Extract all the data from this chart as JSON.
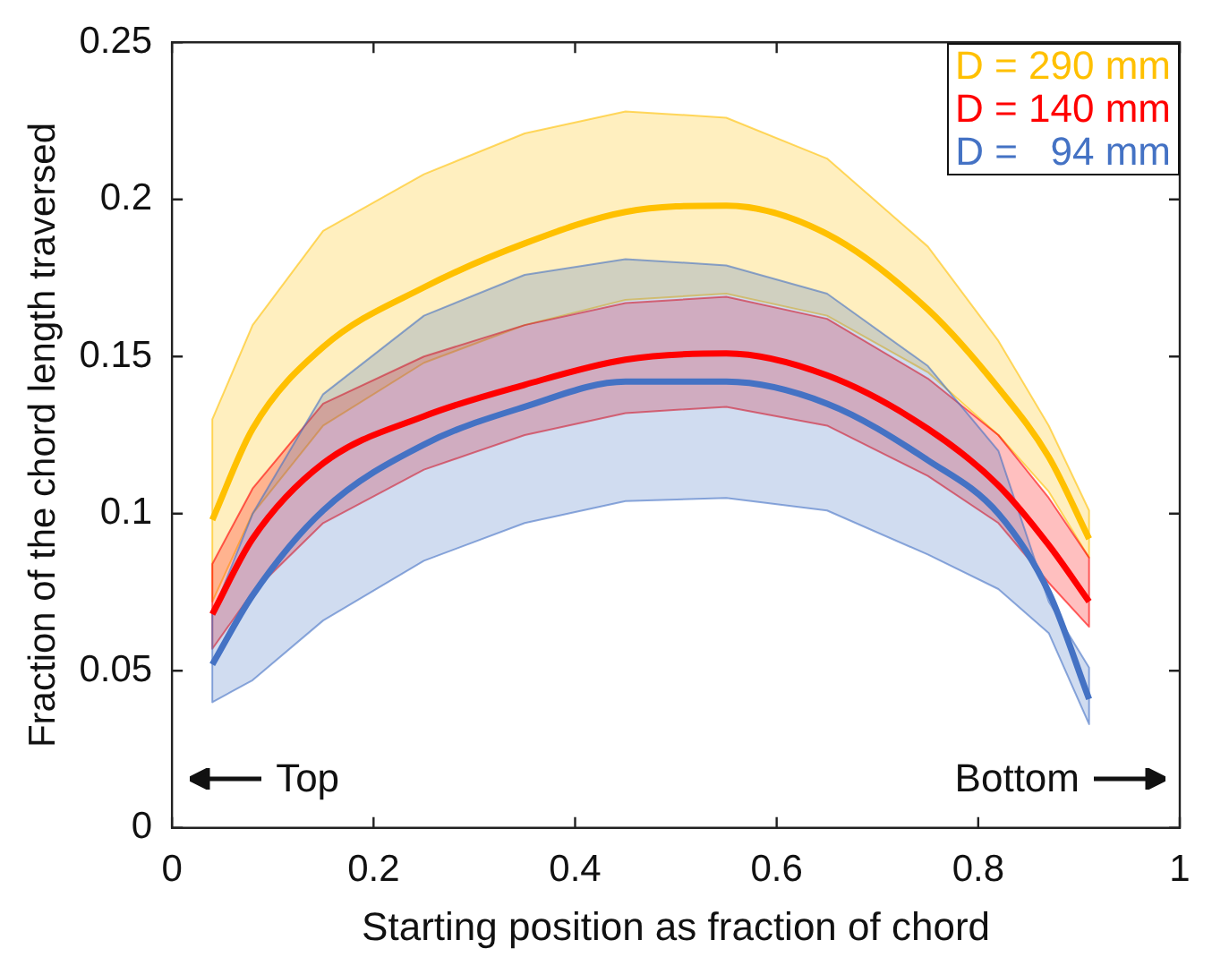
{
  "chart_data": {
    "type": "line",
    "xlabel": "Starting position as fraction of chord",
    "ylabel": "Fraction of the chord length traversed",
    "x": [
      0.04,
      0.08,
      0.15,
      0.25,
      0.35,
      0.45,
      0.55,
      0.65,
      0.75,
      0.82,
      0.87,
      0.91
    ],
    "series": [
      {
        "name": "D = 290 mm",
        "color": "#ffc000",
        "values": [
          0.098,
          0.127,
          0.153,
          0.172,
          0.186,
          0.196,
          0.198,
          0.189,
          0.165,
          0.14,
          0.118,
          0.092
        ],
        "lower": [
          0.072,
          0.1,
          0.128,
          0.148,
          0.16,
          0.168,
          0.17,
          0.163,
          0.145,
          0.125,
          0.107,
          0.086
        ],
        "upper": [
          0.13,
          0.16,
          0.19,
          0.208,
          0.221,
          0.228,
          0.226,
          0.213,
          0.185,
          0.155,
          0.128,
          0.101
        ]
      },
      {
        "name": "D = 140 mm",
        "color": "#ff0000",
        "values": [
          0.068,
          0.092,
          0.116,
          0.131,
          0.141,
          0.149,
          0.151,
          0.144,
          0.127,
          0.109,
          0.09,
          0.072
        ],
        "lower": [
          0.057,
          0.075,
          0.097,
          0.114,
          0.125,
          0.132,
          0.134,
          0.128,
          0.112,
          0.097,
          0.078,
          0.064
        ],
        "upper": [
          0.084,
          0.108,
          0.135,
          0.15,
          0.16,
          0.167,
          0.169,
          0.162,
          0.143,
          0.125,
          0.105,
          0.086
        ]
      },
      {
        "name": "D =   94 mm",
        "color": "#4472c4",
        "values": [
          0.052,
          0.074,
          0.101,
          0.122,
          0.134,
          0.142,
          0.142,
          0.135,
          0.117,
          0.1,
          0.075,
          0.041
        ],
        "lower": [
          0.04,
          0.047,
          0.066,
          0.085,
          0.097,
          0.104,
          0.105,
          0.101,
          0.087,
          0.076,
          0.062,
          0.033
        ],
        "upper": [
          0.068,
          0.1,
          0.138,
          0.163,
          0.176,
          0.181,
          0.179,
          0.17,
          0.147,
          0.12,
          0.072,
          0.051
        ]
      }
    ],
    "xlim": [
      0,
      1
    ],
    "xticks": [
      0,
      0.2,
      0.4,
      0.6,
      0.8,
      1
    ],
    "ylim": [
      0,
      0.25
    ],
    "yticks": [
      0,
      0.05,
      0.1,
      0.15,
      0.2,
      0.25
    ],
    "legend": "top right",
    "marker": "none",
    "line_style": "solid",
    "annotations": [
      "Top",
      "Bottom"
    ]
  }
}
